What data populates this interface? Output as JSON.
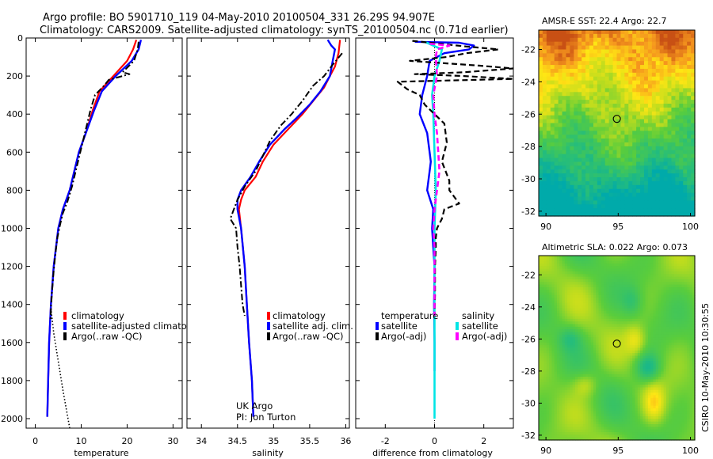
{
  "title_line1": "Argo profile: BO 5901710_119 04-May-2010 20100504_331 26.29S 94.907E",
  "title_line2": "Climatology: CARS2009. Satellite-adjusted climatology: synTS_20100504.nc (0.71d earlier)",
  "side_label": "CSIRO 10-May-2010 10:30:55",
  "credits": [
    "UK Argo",
    "PI: Jon Turton"
  ],
  "colors": {
    "climatology": "#ff0000",
    "satellite": "#0000ff",
    "argo": "#000000",
    "sal_satellite": "#00e5e5",
    "sal_argo": "#ff00ff"
  },
  "chart_data": [
    {
      "type": "line",
      "xlabel": "temperature",
      "ylim": [
        2050,
        0
      ],
      "xlim": [
        -2,
        32
      ],
      "xticks": [
        0,
        10,
        20,
        30
      ],
      "yticks": [
        0,
        200,
        400,
        600,
        800,
        1000,
        1200,
        1400,
        1600,
        1800,
        2000
      ],
      "legend": [
        "climatology",
        "satellite-adjusted climatolo",
        "Argo(..raw -QC)"
      ],
      "series": [
        {
          "name": "climatology",
          "style": "red",
          "points": [
            [
              22,
              10
            ],
            [
              21.3,
              60
            ],
            [
              20,
              120
            ],
            [
              17,
              200
            ],
            [
              14,
              280
            ],
            [
              12.5,
              380
            ],
            [
              11,
              500
            ],
            [
              9.5,
              600
            ],
            [
              8.5,
              700
            ],
            [
              7.5,
              800
            ],
            [
              6,
              900
            ],
            [
              5,
              1000
            ],
            [
              4,
              1200
            ],
            [
              3.4,
              1400
            ],
            [
              3,
              1600
            ],
            [
              2.8,
              1800
            ],
            [
              2.6,
              1990
            ]
          ]
        },
        {
          "name": "satellite-adjusted climatology",
          "style": "blue",
          "points": [
            [
              23,
              10
            ],
            [
              22.5,
              60
            ],
            [
              21,
              120
            ],
            [
              17.5,
              200
            ],
            [
              14.5,
              280
            ],
            [
              12.8,
              380
            ],
            [
              11,
              500
            ],
            [
              9.5,
              600
            ],
            [
              8.5,
              700
            ],
            [
              7.5,
              800
            ],
            [
              6,
              900
            ],
            [
              5,
              1000
            ],
            [
              4,
              1200
            ],
            [
              3.4,
              1400
            ],
            [
              3,
              1600
            ],
            [
              2.8,
              1800
            ],
            [
              2.6,
              1990
            ]
          ]
        },
        {
          "name": "Argo(..raw -QC)",
          "style": "black-dashdot",
          "points": [
            [
              22.5,
              20
            ],
            [
              22.3,
              60
            ],
            [
              21.5,
              120
            ],
            [
              19,
              180
            ],
            [
              20.5,
              190
            ],
            [
              16,
              220
            ],
            [
              15,
              250
            ],
            [
              13,
              300
            ],
            [
              12,
              380
            ],
            [
              11,
              480
            ],
            [
              10,
              580
            ],
            [
              9,
              680
            ],
            [
              8,
              780
            ],
            [
              7,
              860
            ],
            [
              6,
              920
            ],
            [
              5.4,
              980
            ],
            [
              4.8,
              1050
            ],
            [
              4.3,
              1150
            ],
            [
              3.9,
              1250
            ],
            [
              3.6,
              1350
            ],
            [
              3.4,
              1420
            ],
            [
              3.3,
              1480
            ]
          ]
        },
        {
          "name": "climatology-deep",
          "style": "black-dotted",
          "points": [
            [
              3.4,
              1420
            ],
            [
              4,
              1550
            ],
            [
              5,
              1700
            ],
            [
              6,
              1850
            ],
            [
              7.5,
              2050
            ]
          ]
        }
      ]
    },
    {
      "type": "line",
      "xlabel": "salinity",
      "ylim": [
        2050,
        0
      ],
      "xlim": [
        33.8,
        36.05
      ],
      "xticks": [
        34,
        34.5,
        35,
        35.5,
        36
      ],
      "legend": [
        "climatology",
        "satellite adj. clim.",
        "Argo(..raw -QC)"
      ],
      "series": [
        {
          "name": "climatology",
          "style": "red",
          "points": [
            [
              35.92,
              10
            ],
            [
              35.9,
              80
            ],
            [
              35.85,
              150
            ],
            [
              35.78,
              200
            ],
            [
              35.7,
              260
            ],
            [
              35.55,
              330
            ],
            [
              35.4,
              400
            ],
            [
              35.2,
              480
            ],
            [
              35.0,
              560
            ],
            [
              34.85,
              650
            ],
            [
              34.75,
              730
            ],
            [
              34.6,
              800
            ],
            [
              34.55,
              850
            ],
            [
              34.52,
              900
            ],
            [
              34.55,
              1000
            ],
            [
              34.6,
              1200
            ],
            [
              34.63,
              1400
            ],
            [
              34.66,
              1600
            ],
            [
              34.7,
              1800
            ],
            [
              34.72,
              1990
            ]
          ]
        },
        {
          "name": "satellite adj. clim.",
          "style": "blue",
          "points": [
            [
              35.75,
              10
            ],
            [
              35.8,
              40
            ],
            [
              35.85,
              60
            ],
            [
              35.82,
              120
            ],
            [
              35.78,
              200
            ],
            [
              35.65,
              280
            ],
            [
              35.5,
              350
            ],
            [
              35.32,
              420
            ],
            [
              35.15,
              480
            ],
            [
              34.95,
              560
            ],
            [
              34.8,
              650
            ],
            [
              34.68,
              730
            ],
            [
              34.55,
              800
            ],
            [
              34.5,
              850
            ],
            [
              34.5,
              900
            ],
            [
              34.55,
              1000
            ],
            [
              34.6,
              1200
            ],
            [
              34.63,
              1400
            ],
            [
              34.66,
              1600
            ],
            [
              34.7,
              1800
            ],
            [
              34.72,
              1990
            ]
          ]
        },
        {
          "name": "Argo(..raw -QC)",
          "style": "black-dashdot",
          "points": [
            [
              35.95,
              80
            ],
            [
              35.82,
              140
            ],
            [
              35.7,
              200
            ],
            [
              35.55,
              250
            ],
            [
              35.4,
              330
            ],
            [
              35.25,
              400
            ],
            [
              35.1,
              460
            ],
            [
              34.95,
              540
            ],
            [
              34.85,
              620
            ],
            [
              34.75,
              700
            ],
            [
              34.6,
              780
            ],
            [
              34.5,
              850
            ],
            [
              34.45,
              900
            ],
            [
              34.4,
              950
            ],
            [
              34.48,
              1000
            ],
            [
              34.5,
              1100
            ],
            [
              34.53,
              1200
            ],
            [
              34.55,
              1300
            ],
            [
              34.57,
              1400
            ],
            [
              34.6,
              1460
            ]
          ]
        }
      ]
    },
    {
      "type": "line",
      "xlabel": "difference from climatology",
      "ylim": [
        2050,
        0
      ],
      "xlim": [
        -3.2,
        3.2
      ],
      "xticks": [
        -2,
        0,
        2
      ],
      "legend_groups": [
        {
          "title": "temperature",
          "items": [
            "satellite",
            "Argo(-adj)"
          ]
        },
        {
          "title": "salinity",
          "items": [
            "satellite",
            "Argo(-adj)"
          ]
        }
      ],
      "series": [
        {
          "name": "temperature satellite",
          "style": "blue",
          "points": [
            [
              -0.8,
              20
            ],
            [
              1.0,
              25
            ],
            [
              1.6,
              40
            ],
            [
              1.4,
              60
            ],
            [
              0.4,
              80
            ],
            [
              -0.2,
              120
            ],
            [
              -0.3,
              200
            ],
            [
              -0.5,
              300
            ],
            [
              -0.6,
              400
            ],
            [
              -0.3,
              500
            ],
            [
              -0.2,
              600
            ],
            [
              -0.15,
              650
            ],
            [
              -0.2,
              700
            ],
            [
              -0.3,
              800
            ],
            [
              -0.05,
              900
            ],
            [
              -0.1,
              1000
            ],
            [
              -0.05,
              1100
            ],
            [
              0,
              1200
            ],
            [
              -0.02,
              1400
            ],
            [
              0,
              1600
            ],
            [
              0,
              1750
            ]
          ]
        },
        {
          "name": "salinity satellite",
          "style": "cyan",
          "points": [
            [
              -0.4,
              20
            ],
            [
              0.3,
              60
            ],
            [
              0.2,
              120
            ],
            [
              0,
              200
            ],
            [
              -0.1,
              300
            ],
            [
              -0.05,
              400
            ],
            [
              0,
              600
            ],
            [
              0.05,
              800
            ],
            [
              0,
              1000
            ],
            [
              0,
              1200
            ],
            [
              0,
              1400
            ],
            [
              0,
              1600
            ],
            [
              0,
              1800
            ],
            [
              0,
              2000
            ]
          ]
        },
        {
          "name": "temperature Argo(-adj)",
          "style": "black-dashed",
          "points": [
            [
              -0.9,
              15
            ],
            [
              1.3,
              45
            ],
            [
              2.6,
              60
            ],
            [
              1.3,
              80
            ],
            [
              0.5,
              100
            ],
            [
              -1.0,
              120
            ],
            [
              1.8,
              145
            ],
            [
              3.2,
              160
            ],
            [
              1.2,
              180
            ],
            [
              -0.8,
              190
            ],
            [
              1.2,
              200
            ],
            [
              3.2,
              215
            ],
            [
              -1.5,
              230
            ],
            [
              -1.1,
              270
            ],
            [
              -0.6,
              300
            ],
            [
              -0.4,
              350
            ],
            [
              0.4,
              450
            ],
            [
              0.5,
              550
            ],
            [
              0.3,
              650
            ],
            [
              0.6,
              750
            ],
            [
              0.6,
              800
            ],
            [
              1.0,
              870
            ],
            [
              0.4,
              900
            ],
            [
              0.3,
              950
            ],
            [
              0.1,
              1000
            ],
            [
              0.05,
              1050
            ],
            [
              0.05,
              1100
            ],
            [
              0.02,
              1200
            ],
            [
              0.02,
              1350
            ],
            [
              0,
              1450
            ]
          ]
        },
        {
          "name": "salinity Argo(-adj)",
          "style": "magenta-dashed",
          "points": [
            [
              -0.2,
              30
            ],
            [
              0.6,
              40
            ],
            [
              0.1,
              60
            ],
            [
              0.05,
              100
            ],
            [
              0.1,
              200
            ],
            [
              -0.05,
              300
            ],
            [
              0,
              400
            ],
            [
              0.1,
              500
            ],
            [
              0.15,
              600
            ],
            [
              0.2,
              700
            ],
            [
              0.1,
              800
            ],
            [
              0,
              900
            ],
            [
              -0.05,
              1000
            ],
            [
              0,
              1100
            ],
            [
              0,
              1200
            ],
            [
              0,
              1300
            ],
            [
              0,
              1400
            ],
            [
              0,
              1460
            ]
          ]
        }
      ]
    },
    {
      "type": "heatmap",
      "title": "AMSR-E SST: 22.4 Argo: 22.7",
      "xlim": [
        89.5,
        100.3
      ],
      "ylim": [
        -32.3,
        -20.8
      ],
      "xticks": [
        90,
        95,
        100
      ],
      "yticks": [
        -22,
        -24,
        -26,
        -28,
        -30,
        -32
      ],
      "marker": {
        "lon": 94.907,
        "lat": -26.29
      }
    },
    {
      "type": "heatmap",
      "title": "Altimetric SLA: 0.022 Argo: 0.073",
      "xlim": [
        89.5,
        100.3
      ],
      "ylim": [
        -32.3,
        -20.8
      ],
      "xticks": [
        90,
        95,
        100
      ],
      "yticks": [
        -22,
        -24,
        -26,
        -28,
        -30,
        -32
      ],
      "marker": {
        "lon": 94.907,
        "lat": -26.29
      }
    }
  ]
}
